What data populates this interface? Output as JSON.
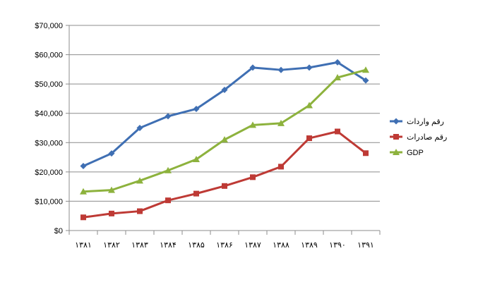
{
  "chart_data": {
    "type": "line",
    "title": "",
    "xlabel": "",
    "ylabel": "",
    "categories": [
      "۱۳۸۱",
      "۱۳۸۲",
      "۱۳۸۳",
      "۱۳۸۴",
      "۱۳۸۵",
      "۱۳۸۶",
      "۱۳۸۷",
      "۱۳۸۸",
      "۱۳۸۹",
      "۱۳۹۰",
      "۱۳۹۱"
    ],
    "ylim": [
      0,
      70000
    ],
    "yticks": [
      "$0",
      "$10,000",
      "$20,000",
      "$30,000",
      "$40,000",
      "$50,000",
      "$60,000",
      "$70,000"
    ],
    "grid": true,
    "legend_position": "right",
    "series": [
      {
        "name": "رقم واردات",
        "color": "#3f6fb3",
        "marker": "diamond",
        "values": [
          22000,
          26300,
          35000,
          39000,
          41500,
          48000,
          55600,
          54800,
          55600,
          57400,
          51200
        ]
      },
      {
        "name": "رقم صادرات",
        "color": "#be3a35",
        "marker": "square",
        "values": [
          4500,
          5800,
          6600,
          10300,
          12600,
          15200,
          18200,
          21800,
          31500,
          33800,
          26400
        ]
      },
      {
        "name": "GDP",
        "color": "#8db23d",
        "marker": "triangle",
        "values": [
          13300,
          13800,
          17000,
          20500,
          24300,
          31000,
          36000,
          36600,
          42700,
          52200,
          54800
        ]
      }
    ]
  }
}
